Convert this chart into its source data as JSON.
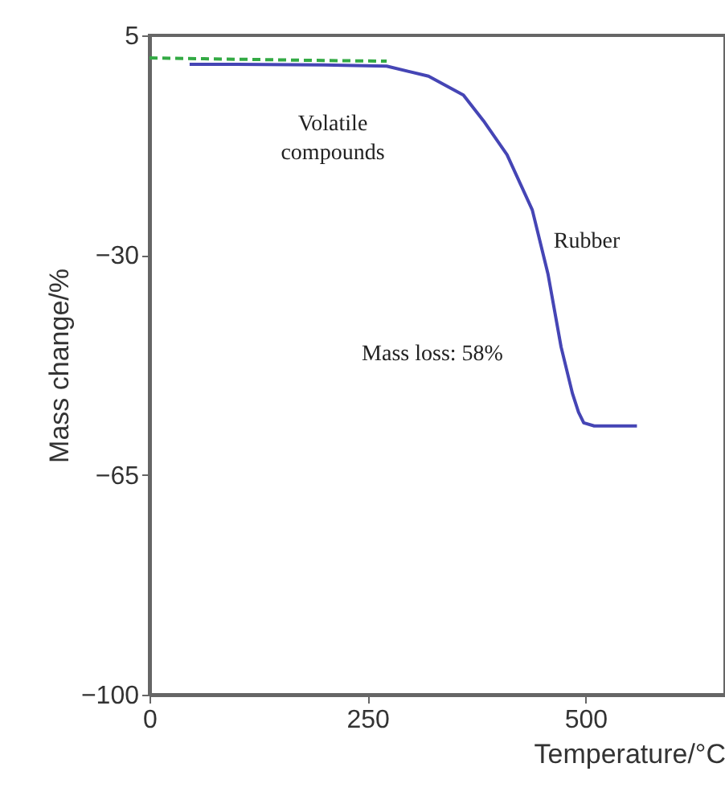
{
  "chart_data": {
    "type": "line",
    "xlabel": "Temperature/°C",
    "ylabel": "Mass change/%",
    "xlim": [
      0,
      660
    ],
    "xticks": [
      0,
      250,
      500
    ],
    "ylim": [
      -100,
      5
    ],
    "yticks": [
      -100,
      -65,
      -30,
      5
    ],
    "grid": false,
    "series": [
      {
        "color": "#33aa44",
        "line_style": "dashed",
        "x": [
          0,
          100,
          200,
          272
        ],
        "values": [
          1.4,
          1.2,
          1.0,
          0.9
        ]
      },
      {
        "color": "#4545b5",
        "line_style": "solid",
        "x": [
          46,
          100,
          200,
          272,
          320,
          360,
          383,
          410,
          439,
          457,
          472,
          485,
          492,
          498,
          510,
          522,
          559
        ],
        "values": [
          0.4,
          0.4,
          0.3,
          0.1,
          -1.5,
          -4.5,
          -8.6,
          -14,
          -22.8,
          -33,
          -44.6,
          -52,
          -55,
          -56.7,
          -57.2,
          -57.2,
          -57.2
        ]
      }
    ],
    "annotations": [
      "Volatile compounds",
      "Rubber",
      "Mass loss: 58%"
    ]
  }
}
